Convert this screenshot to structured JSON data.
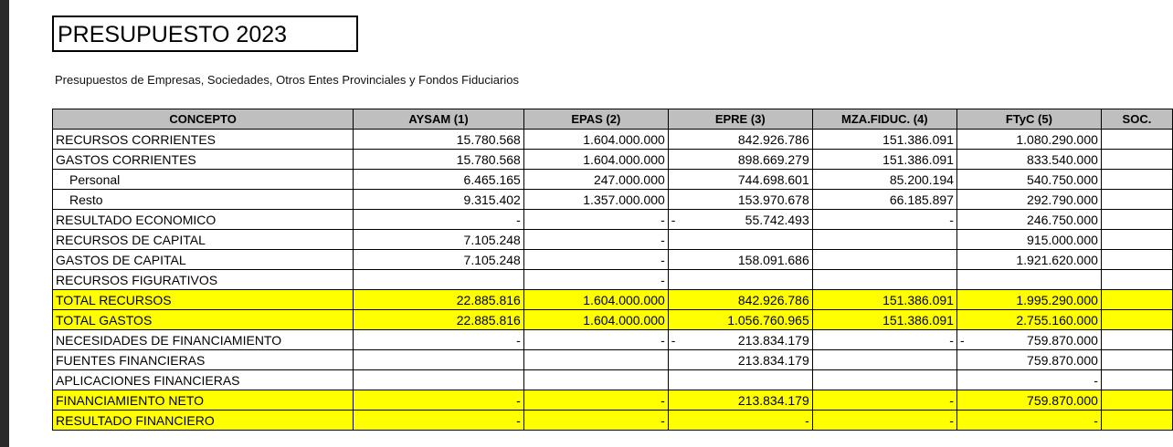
{
  "header": {
    "title": "PRESUPUESTO 2023",
    "subtitle": "Presupuestos de Empresas, Sociedades, Otros Entes Provinciales y Fondos Fiduciarios"
  },
  "table": {
    "columns": [
      "CONCEPTO",
      "AYSAM (1)",
      "EPAS  (2)",
      "EPRE (3)",
      "MZA.FIDUC. (4)",
      "FTyC (5)",
      "SOC."
    ],
    "rows": [
      {
        "label": "RECURSOS CORRIENTES",
        "cells": [
          "15.780.568",
          "1.604.000.000",
          "842.926.786",
          "151.386.091",
          "1.080.290.000",
          null
        ]
      },
      {
        "label": "GASTOS CORRIENTES",
        "cells": [
          "15.780.568",
          "1.604.000.000",
          "898.669.279",
          "151.386.091",
          "833.540.000",
          null
        ]
      },
      {
        "label": "Personal",
        "indent": true,
        "cells": [
          "6.465.165",
          "247.000.000",
          "744.698.601",
          "85.200.194",
          "540.750.000",
          null
        ]
      },
      {
        "label": "Resto",
        "indent": true,
        "cells": [
          "9.315.402",
          "1.357.000.000",
          "153.970.678",
          "66.185.897",
          "292.790.000",
          null
        ]
      },
      {
        "label": "RESULTADO ECONOMICO",
        "cells": [
          "-",
          "-",
          {
            "sign": "-",
            "amount": "55.742.493"
          },
          "-",
          "246.750.000",
          null
        ]
      },
      {
        "label": "RECURSOS DE CAPITAL",
        "cells": [
          "7.105.248",
          "-",
          null,
          null,
          "915.000.000",
          null
        ]
      },
      {
        "label": "GASTOS DE CAPITAL",
        "cells": [
          "7.105.248",
          "-",
          "158.091.686",
          null,
          "1.921.620.000",
          null
        ]
      },
      {
        "label": "RECURSOS FIGURATIVOS",
        "cells": [
          null,
          "-",
          null,
          null,
          null,
          null
        ]
      },
      {
        "label": "TOTAL RECURSOS",
        "highlight": true,
        "cells": [
          "22.885.816",
          "1.604.000.000",
          "842.926.786",
          "151.386.091",
          "1.995.290.000",
          null
        ]
      },
      {
        "label": "TOTAL GASTOS",
        "highlight": true,
        "cells": [
          "22.885.816",
          "1.604.000.000",
          "1.056.760.965",
          "151.386.091",
          "2.755.160.000",
          null
        ]
      },
      {
        "label": "NECESIDADES DE FINANCIAMIENTO",
        "cells": [
          "-",
          "-",
          {
            "sign": "-",
            "amount": "213.834.179"
          },
          "-",
          {
            "sign": "-",
            "amount": "759.870.000"
          },
          null
        ]
      },
      {
        "label": "FUENTES FINANCIERAS",
        "cells": [
          null,
          null,
          "213.834.179",
          null,
          "759.870.000",
          null
        ]
      },
      {
        "label": "APLICACIONES FINANCIERAS",
        "cells": [
          null,
          null,
          null,
          null,
          "-",
          null
        ]
      },
      {
        "label": "FINANCIAMIENTO NETO",
        "highlight": true,
        "cells": [
          "-",
          "-",
          "213.834.179",
          "-",
          "759.870.000",
          null
        ]
      },
      {
        "label": "RESULTADO FINANCIERO",
        "highlight": true,
        "cells": [
          "-",
          "-",
          "-",
          "-",
          "-",
          null
        ]
      }
    ]
  }
}
